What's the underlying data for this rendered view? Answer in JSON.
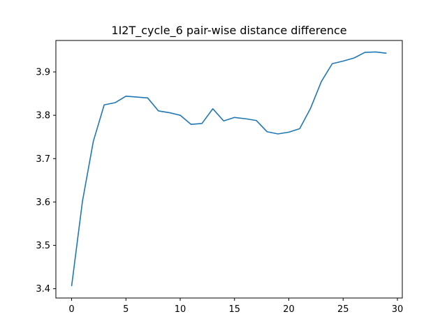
{
  "chart_data": {
    "type": "line",
    "title": "1I2T_cycle_6 pair-wise distance difference",
    "xlabel": "",
    "ylabel": "",
    "xlim": [
      -1.45,
      30.45
    ],
    "ylim": [
      3.3785,
      3.9725
    ],
    "xticks": [
      0,
      5,
      10,
      15,
      20,
      25,
      30
    ],
    "yticks": [
      3.4,
      3.5,
      3.6,
      3.7,
      3.8,
      3.9
    ],
    "grid": false,
    "legend": "none",
    "series": [
      {
        "color": "#1f77b4",
        "x": [
          0,
          1,
          2,
          3,
          4,
          5,
          6,
          7,
          8,
          9,
          10,
          11,
          12,
          13,
          14,
          15,
          16,
          17,
          18,
          19,
          20,
          21,
          22,
          23,
          24,
          25,
          26,
          27,
          28,
          29
        ],
        "y": [
          3.406,
          3.602,
          3.74,
          3.824,
          3.829,
          3.844,
          3.842,
          3.84,
          3.81,
          3.806,
          3.8,
          3.779,
          3.781,
          3.815,
          3.787,
          3.795,
          3.792,
          3.788,
          3.762,
          3.757,
          3.761,
          3.769,
          3.816,
          3.878,
          3.919,
          3.925,
          3.932,
          3.945,
          3.946,
          3.943
        ]
      }
    ]
  }
}
